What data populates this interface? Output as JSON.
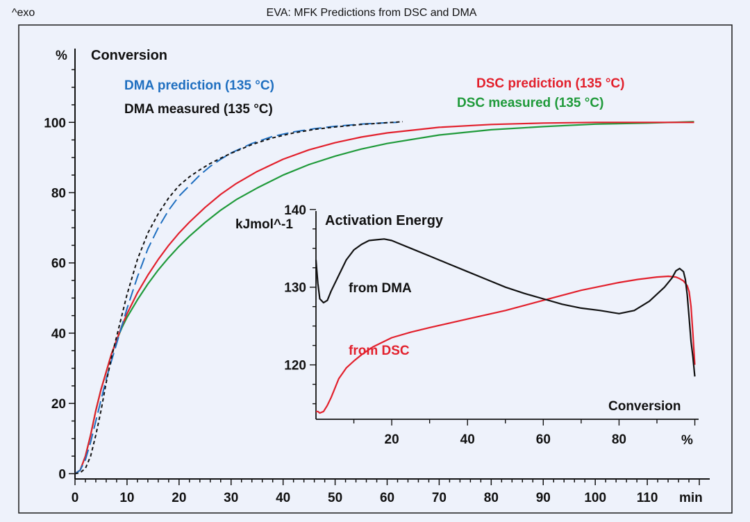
{
  "header": {
    "exo_label": "^exo",
    "title": "EVA: MFK Predictions from DSC and DMA"
  },
  "colors": {
    "background": "#eef2fb",
    "frame": "#1a1a1a",
    "dma_prediction": "#1f6fc0",
    "dma_measured": "#111111",
    "dsc_prediction": "#e2202c",
    "dsc_measured": "#1f9a3a"
  },
  "chart_data": [
    {
      "type": "line",
      "title": "Conversion",
      "ylabel": "%",
      "xlabel": "min",
      "xlim": [
        0,
        122
      ],
      "ylim": [
        -1.5,
        121
      ],
      "x_ticks": [
        0,
        10,
        20,
        30,
        40,
        50,
        60,
        70,
        80,
        90,
        100,
        110
      ],
      "x_tick_labels": [
        "0",
        "10",
        "20",
        "30",
        "40",
        "50",
        "60",
        "70",
        "80",
        "90",
        "100",
        "110"
      ],
      "y_ticks": [
        0,
        20,
        40,
        60,
        80,
        100
      ],
      "y_tick_labels": [
        "0",
        "20",
        "40",
        "60",
        "80",
        "100"
      ],
      "legend": [
        {
          "label": "DMA prediction (135 °C)",
          "series": "dma_prediction"
        },
        {
          "label": "DMA measured (135 °C)",
          "series": "dma_measured"
        },
        {
          "label": "DSC prediction (135 °C)",
          "series": "dsc_prediction"
        },
        {
          "label": "DSC measured (135 °C)",
          "series": "dsc_measured"
        }
      ],
      "series": [
        {
          "name": "DMA prediction (135 °C)",
          "key": "dma_prediction",
          "style": "long-dash",
          "x": [
            0,
            1,
            2,
            3,
            4,
            5,
            6,
            7,
            8,
            9,
            10,
            12,
            14,
            16,
            18,
            20,
            22,
            24,
            26,
            28,
            30,
            34,
            38,
            42,
            46,
            50,
            55,
            60,
            62
          ],
          "y": [
            0,
            1,
            4,
            9,
            15,
            21,
            27,
            32,
            37,
            42,
            47,
            56,
            64,
            70,
            75,
            79,
            82,
            85,
            87.5,
            89.5,
            91.3,
            94,
            96,
            97.3,
            98.2,
            98.9,
            99.5,
            99.9,
            100
          ]
        },
        {
          "name": "DMA measured (135 °C)",
          "key": "dma_measured",
          "style": "short-dash",
          "x": [
            0,
            1,
            2,
            3,
            4,
            5,
            6,
            7,
            8,
            9,
            10,
            12,
            14,
            16,
            18,
            20,
            22,
            24,
            26,
            28,
            30,
            34,
            38,
            42,
            46,
            50,
            55,
            60,
            63
          ],
          "y": [
            0,
            0.3,
            1.5,
            5,
            11,
            18,
            26,
            33,
            39,
            45,
            51,
            61,
            68.5,
            74,
            78.5,
            82,
            84.5,
            86.5,
            88.3,
            89.8,
            91.2,
            93.7,
            95.6,
            97,
            98,
            98.7,
            99.4,
            99.9,
            100.2
          ]
        },
        {
          "name": "DSC prediction (135 °C)",
          "key": "dsc_prediction",
          "style": "solid",
          "x": [
            0,
            1,
            2,
            3,
            4,
            5,
            6,
            7,
            8,
            9,
            10,
            12,
            14,
            16,
            18,
            20,
            22,
            25,
            28,
            31,
            35,
            40,
            45,
            50,
            55,
            60,
            70,
            80,
            90,
            100,
            110,
            119
          ],
          "y": [
            0,
            1,
            5,
            11,
            18,
            24,
            29,
            34,
            38,
            42,
            45.5,
            51.5,
            56.5,
            61,
            65,
            68.5,
            71.6,
            75.8,
            79.5,
            82.6,
            86,
            89.5,
            92.2,
            94.2,
            95.8,
            97,
            98.6,
            99.4,
            99.8,
            100,
            100,
            100
          ]
        },
        {
          "name": "DSC measured (135 °C)",
          "key": "dsc_measured",
          "style": "solid",
          "x": [
            0,
            1,
            2,
            3,
            4,
            5,
            6,
            7,
            8,
            9,
            10,
            12,
            14,
            16,
            18,
            20,
            22,
            25,
            28,
            31,
            35,
            40,
            45,
            50,
            55,
            60,
            70,
            80,
            90,
            100,
            110,
            119
          ],
          "y": [
            0,
            1,
            5,
            11,
            18,
            24,
            29,
            34,
            38,
            41.5,
            44.5,
            49.5,
            54,
            58,
            61.5,
            64.7,
            67.6,
            71.5,
            75,
            78,
            81.3,
            85,
            88,
            90.4,
            92.4,
            94,
            96.4,
            97.9,
            98.8,
            99.5,
            99.8,
            100.2
          ]
        }
      ]
    },
    {
      "type": "line",
      "title": "Activation Energy",
      "ylabel": "kJmol^-1",
      "xlabel": "Conversion",
      "x_unit": "%",
      "xlim": [
        0,
        101
      ],
      "ylim": [
        113,
        139.8
      ],
      "x_ticks": [
        20,
        40,
        60,
        80
      ],
      "x_tick_labels": [
        "20",
        "40",
        "60",
        "80"
      ],
      "y_ticks": [
        120,
        130,
        140
      ],
      "y_tick_labels": [
        "120",
        "130",
        "140"
      ],
      "annotations": [
        {
          "text": "from DMA",
          "series": "from_dma"
        },
        {
          "text": "from DSC",
          "series": "from_dsc"
        }
      ],
      "series": [
        {
          "name": "from DMA",
          "key": "from_dma",
          "x": [
            0,
            0.5,
            1,
            2,
            3,
            4,
            6,
            8,
            10,
            12,
            14,
            16,
            18,
            20,
            22,
            25,
            30,
            35,
            40,
            45,
            50,
            55,
            60,
            65,
            70,
            75,
            80,
            84,
            88,
            92,
            94,
            95,
            96,
            97,
            97.5,
            98,
            98.5,
            99,
            99.5,
            100
          ],
          "y": [
            133.5,
            130.5,
            128.5,
            128,
            128.3,
            129.5,
            131.5,
            133.5,
            134.8,
            135.5,
            136,
            136.1,
            136.2,
            136,
            135.6,
            135,
            134,
            133,
            132,
            131,
            130,
            129.2,
            128.5,
            127.8,
            127.3,
            127,
            126.6,
            127,
            128.2,
            130,
            131.2,
            132.1,
            132.4,
            132,
            131,
            129,
            126,
            123,
            121,
            118.5
          ]
        },
        {
          "name": "from DSC",
          "key": "from_dsc",
          "x": [
            0,
            0.5,
            1,
            2,
            3,
            4,
            5,
            6,
            8,
            10,
            12,
            15,
            20,
            25,
            30,
            40,
            50,
            60,
            70,
            80,
            85,
            90,
            93,
            95,
            96,
            97,
            98,
            98.5,
            99,
            99.5,
            100
          ],
          "y": [
            114,
            114,
            113.8,
            114,
            114.8,
            115.8,
            117,
            118.2,
            119.6,
            120.5,
            121.3,
            122.3,
            123.5,
            124.2,
            124.8,
            125.9,
            127,
            128.3,
            129.6,
            130.6,
            131,
            131.3,
            131.4,
            131.3,
            131.1,
            130.8,
            130.2,
            129.4,
            127.5,
            124,
            120
          ]
        }
      ]
    }
  ]
}
